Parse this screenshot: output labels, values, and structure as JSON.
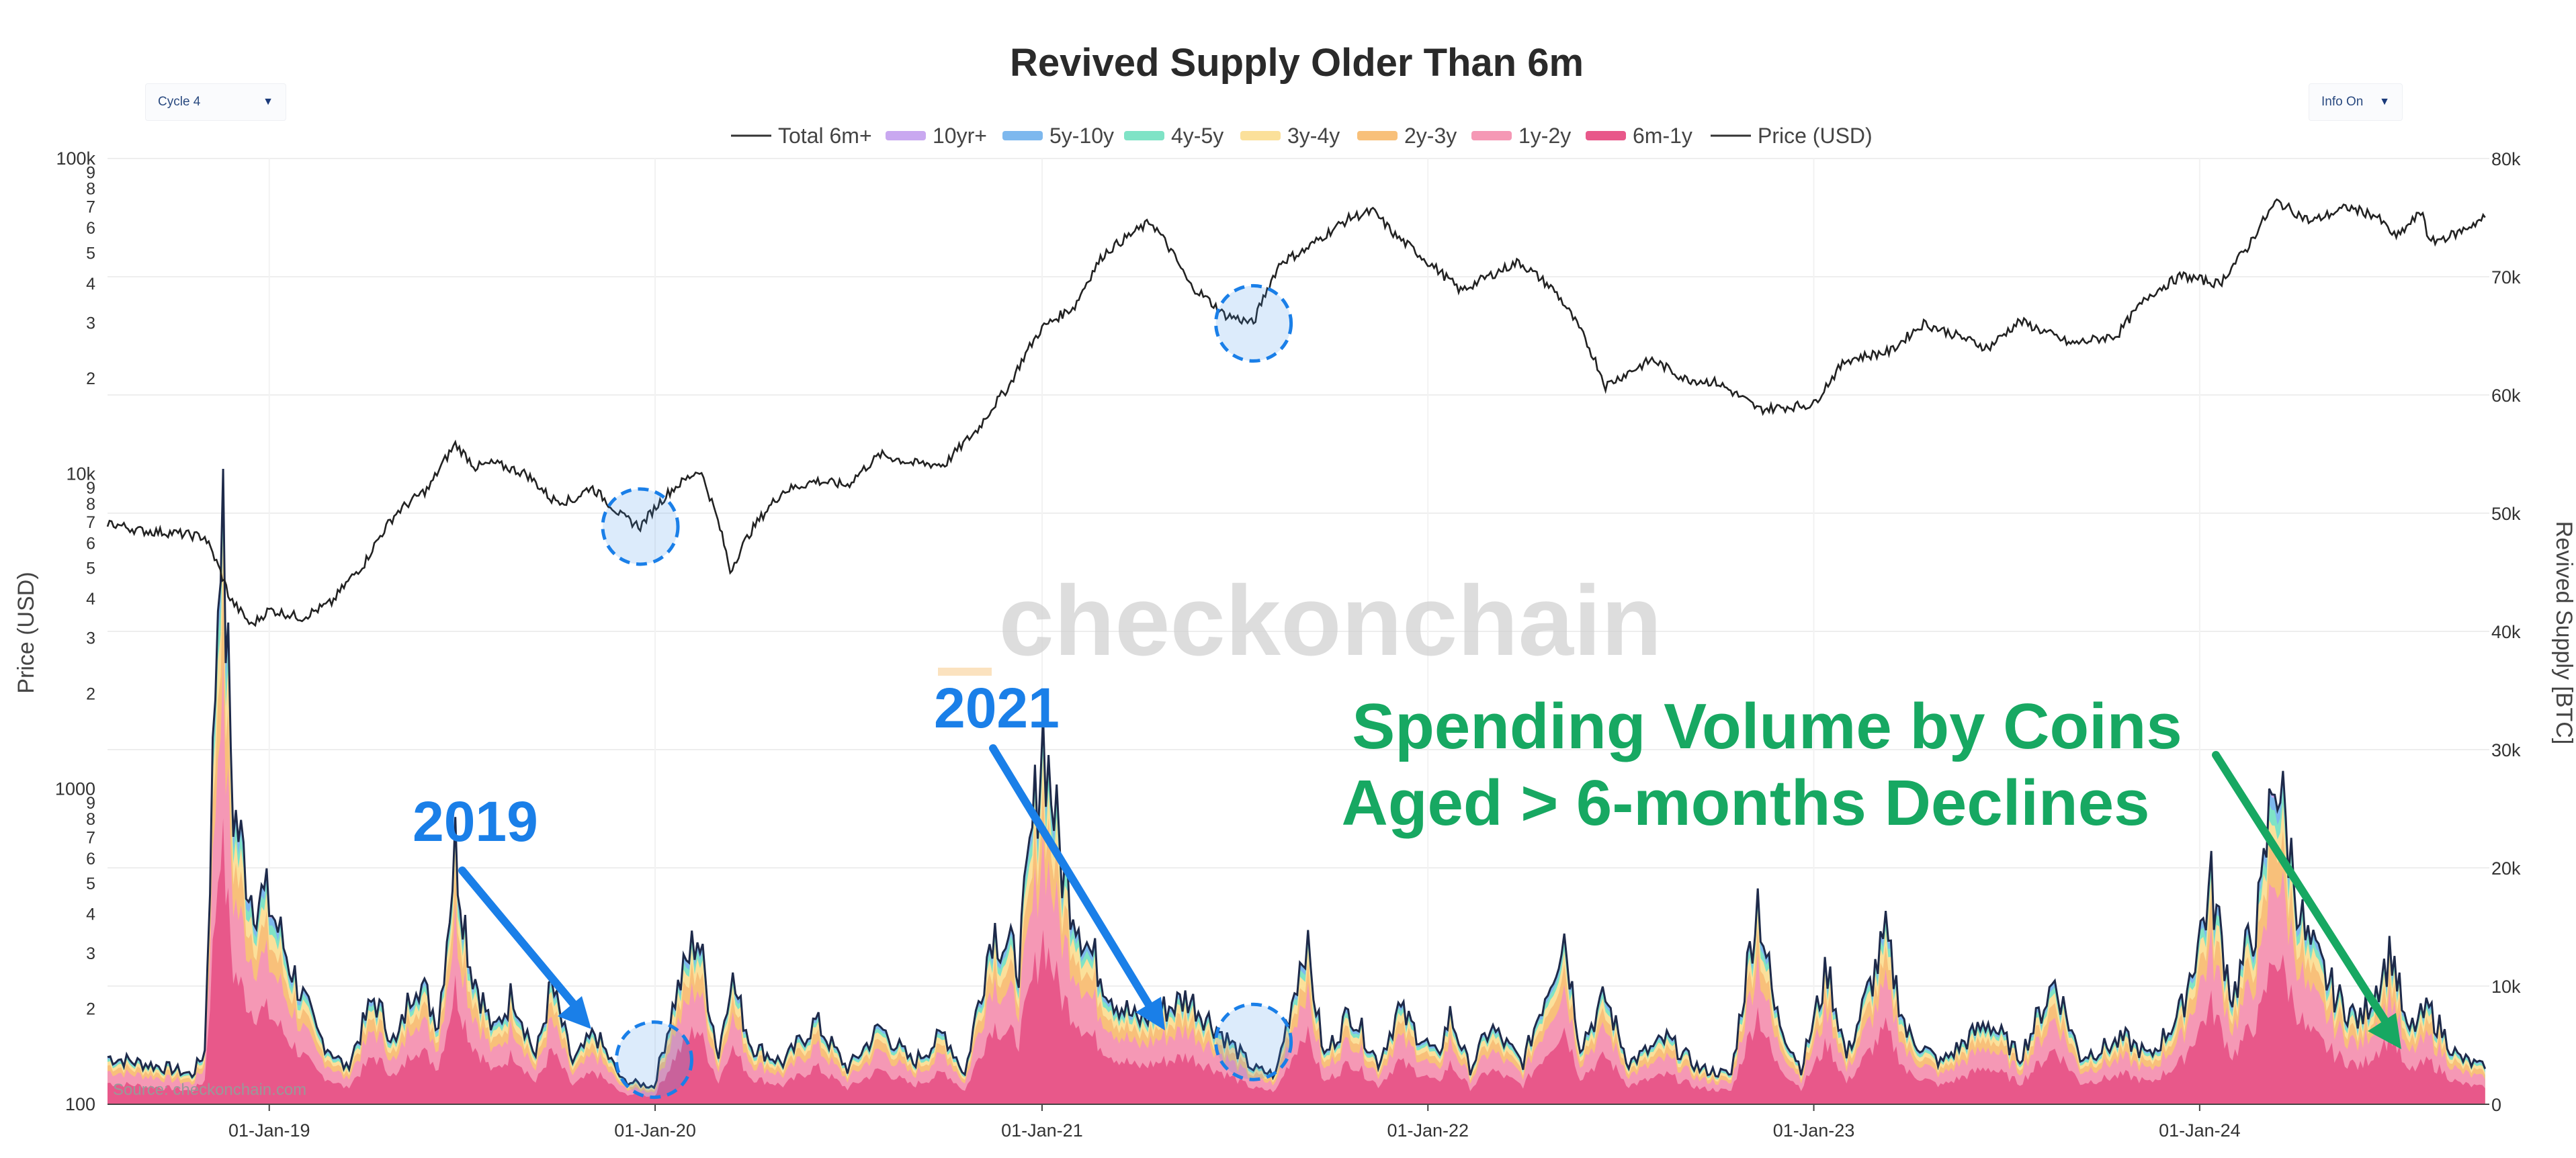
{
  "chart_data": {
    "type": "area",
    "title": "Revived Supply Older Than 6m",
    "controls": {
      "left_dropdown": "Cycle 4",
      "right_dropdown": "Info On"
    },
    "legend": [
      {
        "name": "Total 6m+",
        "color": "#333333",
        "kind": "line"
      },
      {
        "name": "10yr+",
        "color": "#c9a8f0",
        "kind": "area"
      },
      {
        "name": "5y-10y",
        "color": "#7db8ee",
        "kind": "area"
      },
      {
        "name": "4y-5y",
        "color": "#7fe3c6",
        "kind": "area"
      },
      {
        "name": "3y-4y",
        "color": "#fbe09a",
        "kind": "area"
      },
      {
        "name": "2y-3y",
        "color": "#f8c07a",
        "kind": "area"
      },
      {
        "name": "1y-2y",
        "color": "#f598b5",
        "kind": "area"
      },
      {
        "name": "6m-1y",
        "color": "#e8588a",
        "kind": "area"
      },
      {
        "name": "Price (USD)",
        "color": "#333333",
        "kind": "line"
      }
    ],
    "left_axis": {
      "title": "Price (USD)",
      "scale": "log",
      "range": [
        100,
        100000
      ],
      "major_labels": [
        "100k",
        "10k",
        "1000",
        "100"
      ],
      "minor_labels": [
        "9",
        "8",
        "7",
        "6",
        "5",
        "4",
        "3",
        "2"
      ]
    },
    "right_axis": {
      "title": "Revived Supply [BTC]",
      "range": [
        0,
        80000
      ],
      "labels": [
        "80k",
        "70k",
        "60k",
        "50k",
        "40k",
        "30k",
        "20k",
        "10k",
        "0"
      ]
    },
    "x_axis": {
      "labels": [
        "01-Jan-19",
        "01-Jan-20",
        "01-Jan-21",
        "01-Jan-22",
        "01-Jan-23",
        "01-Jan-24"
      ],
      "range": [
        "2018-08",
        "2024-10"
      ]
    },
    "price_series": {
      "name": "Price (USD)",
      "points": [
        [
          "2018-08-01",
          7000
        ],
        [
          "2018-09-01",
          6600
        ],
        [
          "2018-10-01",
          6500
        ],
        [
          "2018-11-01",
          6300
        ],
        [
          "2018-11-25",
          4000
        ],
        [
          "2018-12-15",
          3300
        ],
        [
          "2019-01-01",
          3700
        ],
        [
          "2019-02-01",
          3500
        ],
        [
          "2019-03-01",
          3900
        ],
        [
          "2019-04-01",
          5200
        ],
        [
          "2019-05-01",
          7500
        ],
        [
          "2019-06-01",
          9000
        ],
        [
          "2019-06-26",
          12400
        ],
        [
          "2019-07-15",
          10500
        ],
        [
          "2019-08-01",
          10800
        ],
        [
          "2019-09-01",
          10000
        ],
        [
          "2019-09-25",
          8300
        ],
        [
          "2019-10-15",
          8200
        ],
        [
          "2019-11-01",
          9100
        ],
        [
          "2019-12-01",
          7300
        ],
        [
          "2019-12-18",
          6800
        ],
        [
          "2020-01-15",
          8800
        ],
        [
          "2020-02-12",
          10300
        ],
        [
          "2020-03-12",
          4900
        ],
        [
          "2020-04-01",
          6600
        ],
        [
          "2020-05-01",
          8800
        ],
        [
          "2020-06-01",
          9500
        ],
        [
          "2020-07-01",
          9200
        ],
        [
          "2020-08-01",
          11500
        ],
        [
          "2020-09-01",
          10800
        ],
        [
          "2020-10-01",
          10700
        ],
        [
          "2020-11-01",
          13800
        ],
        [
          "2020-12-01",
          19000
        ],
        [
          "2021-01-01",
          29000
        ],
        [
          "2021-02-01",
          34000
        ],
        [
          "2021-03-01",
          50000
        ],
        [
          "2021-04-14",
          63000
        ],
        [
          "2021-05-20",
          40000
        ],
        [
          "2021-06-22",
          32000
        ],
        [
          "2021-07-20",
          30000
        ],
        [
          "2021-08-15",
          47000
        ],
        [
          "2021-09-06",
          51000
        ],
        [
          "2021-10-20",
          65000
        ],
        [
          "2021-11-10",
          68000
        ],
        [
          "2021-12-01",
          57000
        ],
        [
          "2022-01-01",
          47000
        ],
        [
          "2022-02-01",
          38000
        ],
        [
          "2022-03-28",
          47000
        ],
        [
          "2022-05-01",
          38000
        ],
        [
          "2022-06-18",
          19000
        ],
        [
          "2022-08-01",
          23000
        ],
        [
          "2022-09-01",
          20000
        ],
        [
          "2022-10-01",
          19500
        ],
        [
          "2022-11-10",
          16000
        ],
        [
          "2023-01-01",
          16600
        ],
        [
          "2023-02-01",
          23000
        ],
        [
          "2023-03-15",
          24500
        ],
        [
          "2023-04-15",
          30000
        ],
        [
          "2023-06-15",
          25000
        ],
        [
          "2023-07-15",
          30500
        ],
        [
          "2023-09-01",
          25800
        ],
        [
          "2023-10-15",
          27500
        ],
        [
          "2023-11-15",
          37000
        ],
        [
          "2023-12-15",
          42500
        ],
        [
          "2024-01-20",
          40000
        ],
        [
          "2024-02-15",
          52000
        ],
        [
          "2024-03-14",
          73000
        ],
        [
          "2024-04-15",
          63000
        ],
        [
          "2024-05-20",
          70000
        ],
        [
          "2024-06-15",
          66000
        ],
        [
          "2024-07-05",
          56000
        ],
        [
          "2024-07-30",
          68000
        ],
        [
          "2024-08-05",
          54000
        ],
        [
          "2024-09-01",
          58000
        ],
        [
          "2024-09-27",
          65000
        ]
      ]
    },
    "revived_supply": {
      "name": "Total 6m+",
      "bands_order_bottom_to_top": [
        "6m-1y",
        "1y-2y",
        "2y-3y",
        "3y-4y",
        "4y-5y",
        "5y-10y",
        "10yr+"
      ],
      "points": [
        [
          "2018-08-01",
          4000
        ],
        [
          "2018-09-01",
          3500
        ],
        [
          "2018-10-01",
          3000
        ],
        [
          "2018-10-20",
          2500
        ],
        [
          "2018-11-01",
          4500
        ],
        [
          "2018-11-16",
          52000
        ],
        [
          "2018-11-28",
          25000
        ],
        [
          "2018-12-15",
          18000
        ],
        [
          "2019-01-01",
          17000
        ],
        [
          "2019-01-20",
          12000
        ],
        [
          "2019-02-15",
          6000
        ],
        [
          "2019-03-15",
          3000
        ],
        [
          "2019-04-10",
          9000
        ],
        [
          "2019-05-01",
          5000
        ],
        [
          "2019-05-20",
          11000
        ],
        [
          "2019-06-10",
          7000
        ],
        [
          "2019-06-26",
          22000
        ],
        [
          "2019-07-10",
          12000
        ],
        [
          "2019-08-01",
          6000
        ],
        [
          "2019-08-20",
          9500
        ],
        [
          "2019-09-10",
          4000
        ],
        [
          "2019-09-25",
          10000
        ],
        [
          "2019-10-15",
          3500
        ],
        [
          "2019-11-05",
          6000
        ],
        [
          "2019-12-01",
          2000
        ],
        [
          "2019-12-31",
          1500
        ],
        [
          "2020-01-20",
          9000
        ],
        [
          "2020-02-10",
          14500
        ],
        [
          "2020-03-01",
          4000
        ],
        [
          "2020-03-12",
          11000
        ],
        [
          "2020-04-01",
          5000
        ],
        [
          "2020-05-01",
          3500
        ],
        [
          "2020-06-01",
          7000
        ],
        [
          "2020-07-01",
          3000
        ],
        [
          "2020-08-01",
          6500
        ],
        [
          "2020-09-01",
          3500
        ],
        [
          "2020-10-01",
          6000
        ],
        [
          "2020-10-20",
          2500
        ],
        [
          "2020-11-15",
          15000
        ],
        [
          "2020-12-10",
          12000
        ],
        [
          "2021-01-02",
          31500
        ],
        [
          "2021-01-20",
          20000
        ],
        [
          "2021-02-15",
          13000
        ],
        [
          "2021-03-10",
          9000
        ],
        [
          "2021-04-01",
          7000
        ],
        [
          "2021-05-19",
          9000
        ],
        [
          "2021-06-20",
          6000
        ],
        [
          "2021-07-20",
          3000
        ],
        [
          "2021-08-10",
          2500
        ],
        [
          "2021-09-07",
          14000
        ],
        [
          "2021-09-25",
          4000
        ],
        [
          "2021-10-20",
          8000
        ],
        [
          "2021-11-15",
          3500
        ],
        [
          "2021-12-04",
          8000
        ],
        [
          "2022-01-10",
          4000
        ],
        [
          "2022-01-22",
          7500
        ],
        [
          "2022-02-10",
          3000
        ],
        [
          "2022-03-01",
          6500
        ],
        [
          "2022-04-01",
          3500
        ],
        [
          "2022-05-10",
          14500
        ],
        [
          "2022-05-25",
          5000
        ],
        [
          "2022-06-18",
          9000
        ],
        [
          "2022-07-10",
          3500
        ],
        [
          "2022-08-15",
          5500
        ],
        [
          "2022-09-15",
          3000
        ],
        [
          "2022-10-15",
          2500
        ],
        [
          "2022-11-09",
          17500
        ],
        [
          "2022-11-25",
          8000
        ],
        [
          "2022-12-20",
          3000
        ],
        [
          "2023-01-14",
          11500
        ],
        [
          "2023-02-01",
          4000
        ],
        [
          "2023-03-10",
          14000
        ],
        [
          "2023-03-30",
          6000
        ],
        [
          "2023-05-01",
          3500
        ],
        [
          "2023-06-15",
          7000
        ],
        [
          "2023-07-15",
          4000
        ],
        [
          "2023-08-17",
          10500
        ],
        [
          "2023-09-10",
          4000
        ],
        [
          "2023-10-23",
          5500
        ],
        [
          "2023-11-15",
          4000
        ],
        [
          "2023-12-15",
          8000
        ],
        [
          "2024-01-12",
          18500
        ],
        [
          "2024-02-01",
          9000
        ],
        [
          "2024-02-28",
          17000
        ],
        [
          "2024-03-12",
          29000
        ],
        [
          "2024-03-25",
          22000
        ],
        [
          "2024-04-10",
          14000
        ],
        [
          "2024-05-10",
          9000
        ],
        [
          "2024-06-01",
          7000
        ],
        [
          "2024-07-01",
          13000
        ],
        [
          "2024-07-15",
          6000
        ],
        [
          "2024-08-05",
          8000
        ],
        [
          "2024-09-01",
          4000
        ],
        [
          "2024-09-27",
          3000
        ]
      ]
    },
    "annotations": {
      "year_2019": "2019",
      "year_2021": "2021",
      "headline_line1": "Spending Volume by Coins",
      "headline_line2": "Aged > 6-months Declines",
      "watermark": "checkonchain",
      "source": "Source: checkonchain.com"
    }
  }
}
